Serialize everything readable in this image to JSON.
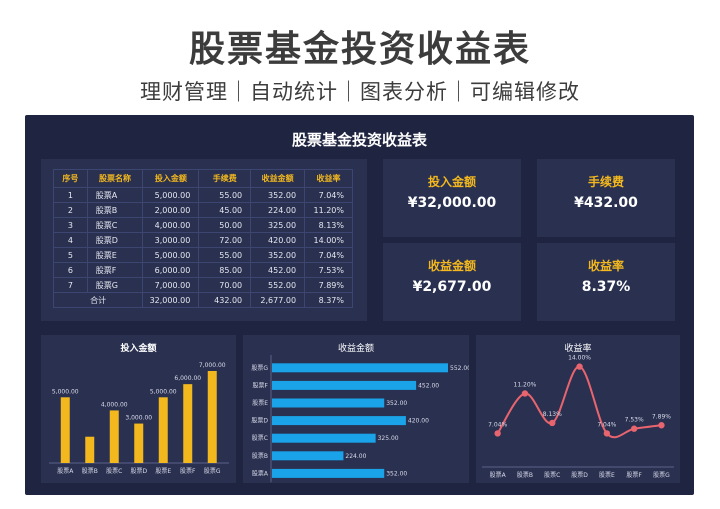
{
  "header": {
    "title": "股票基金投资收益表",
    "subtitle": "理财管理｜自动统计｜图表分析｜可编辑修改"
  },
  "dashboard": {
    "title": "股票基金投资收益表"
  },
  "table": {
    "headers": [
      "序号",
      "股票名称",
      "投入金额",
      "手续费",
      "收益金额",
      "收益率"
    ],
    "rows": [
      [
        "1",
        "股票A",
        "5,000.00",
        "55.00",
        "352.00",
        "7.04%"
      ],
      [
        "2",
        "股票B",
        "2,000.00",
        "45.00",
        "224.00",
        "11.20%"
      ],
      [
        "3",
        "股票C",
        "4,000.00",
        "50.00",
        "325.00",
        "8.13%"
      ],
      [
        "4",
        "股票D",
        "3,000.00",
        "72.00",
        "420.00",
        "14.00%"
      ],
      [
        "5",
        "股票E",
        "5,000.00",
        "55.00",
        "352.00",
        "7.04%"
      ],
      [
        "6",
        "股票F",
        "6,000.00",
        "85.00",
        "452.00",
        "7.53%"
      ],
      [
        "7",
        "股票G",
        "7,000.00",
        "70.00",
        "552.00",
        "7.89%"
      ]
    ],
    "total": [
      "合计",
      "32,000.00",
      "432.00",
      "2,677.00",
      "8.37%"
    ]
  },
  "kpis": {
    "invest": {
      "label": "投入金额",
      "value": "¥32,000.00"
    },
    "fee": {
      "label": "手续费",
      "value": "¥432.00"
    },
    "profit": {
      "label": "收益金额",
      "value": "¥2,677.00"
    },
    "rate": {
      "label": "收益率",
      "value": "8.37%"
    }
  },
  "colors": {
    "accent": "#f2b81e",
    "bar_blue": "#1aa3e8",
    "line_red": "#e8656f",
    "panel": "#2a3050",
    "background": "#1f2440"
  },
  "chart_data": [
    {
      "type": "bar",
      "title": "投入金额",
      "categories": [
        "股票A",
        "股票B",
        "股票C",
        "股票D",
        "股票E",
        "股票F",
        "股票G"
      ],
      "values": [
        5000,
        2000,
        4000,
        3000,
        5000,
        6000,
        7000
      ],
      "labels": [
        "5,000.00",
        "",
        "4,000.00",
        "3,000.00",
        "5,000.00",
        "6,000.00",
        "7,000.00"
      ],
      "ylim": [
        0,
        7000
      ]
    },
    {
      "type": "bar",
      "orientation": "horizontal",
      "title": "收益金额",
      "categories": [
        "股票G",
        "股票F",
        "股票E",
        "股票D",
        "股票C",
        "股票B",
        "股票A"
      ],
      "values": [
        552,
        452,
        352,
        420,
        325,
        224,
        352
      ],
      "labels": [
        "552.00",
        "452.00",
        "352.00",
        "420.00",
        "325.00",
        "224.00",
        "352.00"
      ],
      "xlim": [
        0,
        552
      ]
    },
    {
      "type": "line",
      "title": "收益率",
      "categories": [
        "股票A",
        "股票B",
        "股票C",
        "股票D",
        "股票E",
        "股票F",
        "股票G"
      ],
      "values": [
        7.04,
        11.2,
        8.13,
        14.0,
        7.04,
        7.53,
        7.89
      ],
      "labels": [
        "7.04%",
        "11.20%",
        "8.13%",
        "14.00%",
        "7.04%",
        "7.53%",
        "7.89%"
      ],
      "ylim": [
        5,
        15
      ]
    }
  ]
}
